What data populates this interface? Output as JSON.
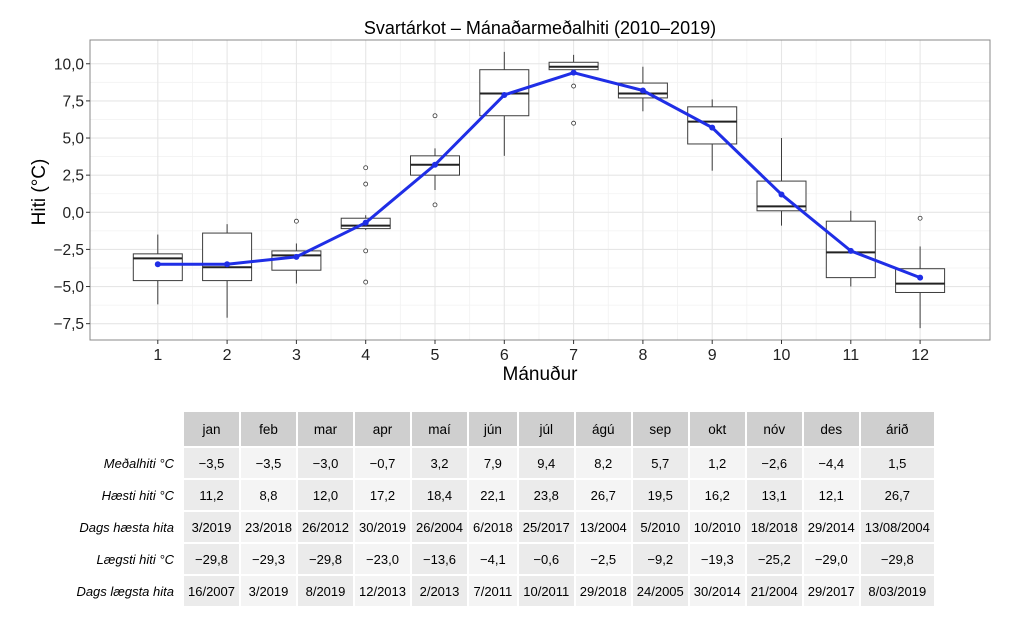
{
  "chart_data": {
    "type": "box",
    "title": "Svartárkot – Mánaðarmeðalhiti (2010–2019)",
    "xlabel": "Mánuður",
    "ylabel": "Hiti (°C)",
    "categories": [
      "1",
      "2",
      "3",
      "4",
      "5",
      "6",
      "7",
      "8",
      "9",
      "10",
      "11",
      "12"
    ],
    "y_ticks": [
      "10,0",
      "7,5",
      "5,0",
      "2,5",
      "0,0",
      "−2,5",
      "−5,0",
      "−7,5"
    ],
    "y_tick_values": [
      10,
      7.5,
      5,
      2.5,
      0,
      -2.5,
      -5,
      -7.5
    ],
    "ylim": [
      -8.6,
      11.6
    ],
    "grid": true,
    "boxes": [
      {
        "min": -6.2,
        "q1": -4.6,
        "median": -3.1,
        "q3": -2.8,
        "max": -1.5,
        "outliers": []
      },
      {
        "min": -7.1,
        "q1": -4.6,
        "median": -3.7,
        "q3": -1.4,
        "max": -0.8,
        "outliers": []
      },
      {
        "min": -4.8,
        "q1": -3.9,
        "median": -2.9,
        "q3": -2.6,
        "max": -2.1,
        "outliers": [
          -0.6
        ]
      },
      {
        "min": -1.2,
        "q1": -1.1,
        "median": -0.9,
        "q3": -0.4,
        "max": -0.2,
        "outliers": [
          3.0,
          1.9,
          -2.6,
          -4.7
        ]
      },
      {
        "min": 1.5,
        "q1": 2.5,
        "median": 3.2,
        "q3": 3.8,
        "max": 4.3,
        "outliers": [
          6.5,
          0.5
        ]
      },
      {
        "min": 3.8,
        "q1": 6.5,
        "median": 8.0,
        "q3": 9.6,
        "max": 10.8,
        "outliers": []
      },
      {
        "min": 9.3,
        "q1": 9.6,
        "median": 9.8,
        "q3": 10.1,
        "max": 10.6,
        "outliers": [
          8.5,
          6.0
        ]
      },
      {
        "min": 6.8,
        "q1": 7.7,
        "median": 8.0,
        "q3": 8.7,
        "max": 9.8,
        "outliers": []
      },
      {
        "min": 2.8,
        "q1": 4.6,
        "median": 6.1,
        "q3": 7.1,
        "max": 7.6,
        "outliers": []
      },
      {
        "min": -0.9,
        "q1": 0.1,
        "median": 0.4,
        "q3": 2.1,
        "max": 5.0,
        "outliers": []
      },
      {
        "min": -5.0,
        "q1": -4.4,
        "median": -2.7,
        "q3": -0.6,
        "max": 0.1,
        "outliers": []
      },
      {
        "min": -7.8,
        "q1": -5.4,
        "median": -4.8,
        "q3": -3.8,
        "max": -2.3,
        "outliers": [
          -0.4
        ]
      }
    ],
    "mean_line": [
      -3.5,
      -3.5,
      -3.0,
      -0.7,
      3.2,
      7.9,
      9.4,
      8.2,
      5.7,
      1.2,
      -2.6,
      -4.4
    ],
    "colors": {
      "mean_line": "#1f2ee6",
      "grid": "#e6e6e6",
      "box": "#3c3c3c",
      "panel_border": "#888888"
    }
  },
  "table": {
    "columns": [
      "jan",
      "feb",
      "mar",
      "apr",
      "maí",
      "jún",
      "júl",
      "ágú",
      "sep",
      "okt",
      "nóv",
      "des",
      "árið"
    ],
    "rows": [
      {
        "label": "Meðalhiti °C",
        "values": [
          "−3,5",
          "−3,5",
          "−3,0",
          "−0,7",
          "3,2",
          "7,9",
          "9,4",
          "8,2",
          "5,7",
          "1,2",
          "−2,6",
          "−4,4",
          "1,5"
        ]
      },
      {
        "label": "Hæsti hiti °C",
        "values": [
          "11,2",
          "8,8",
          "12,0",
          "17,2",
          "18,4",
          "22,1",
          "23,8",
          "26,7",
          "19,5",
          "16,2",
          "13,1",
          "12,1",
          "26,7"
        ]
      },
      {
        "label": "Dags hæsta hita",
        "values": [
          "3/2019",
          "23/2018",
          "26/2012",
          "30/2019",
          "26/2004",
          "6/2018",
          "25/2017",
          "13/2004",
          "5/2010",
          "10/2010",
          "18/2018",
          "29/2014",
          "13/08/2004"
        ]
      },
      {
        "label": "Lægsti hiti °C",
        "values": [
          "−29,8",
          "−29,3",
          "−29,8",
          "−23,0",
          "−13,6",
          "−4,1",
          "−0,6",
          "−2,5",
          "−9,2",
          "−19,3",
          "−25,2",
          "−29,0",
          "−29,8"
        ]
      },
      {
        "label": "Dags lægsta hita",
        "values": [
          "16/2007",
          "3/2019",
          "8/2019",
          "12/2013",
          "2/2013",
          "7/2011",
          "10/2011",
          "29/2018",
          "24/2005",
          "30/2014",
          "21/2004",
          "29/2017",
          "8/03/2019"
        ]
      }
    ]
  }
}
